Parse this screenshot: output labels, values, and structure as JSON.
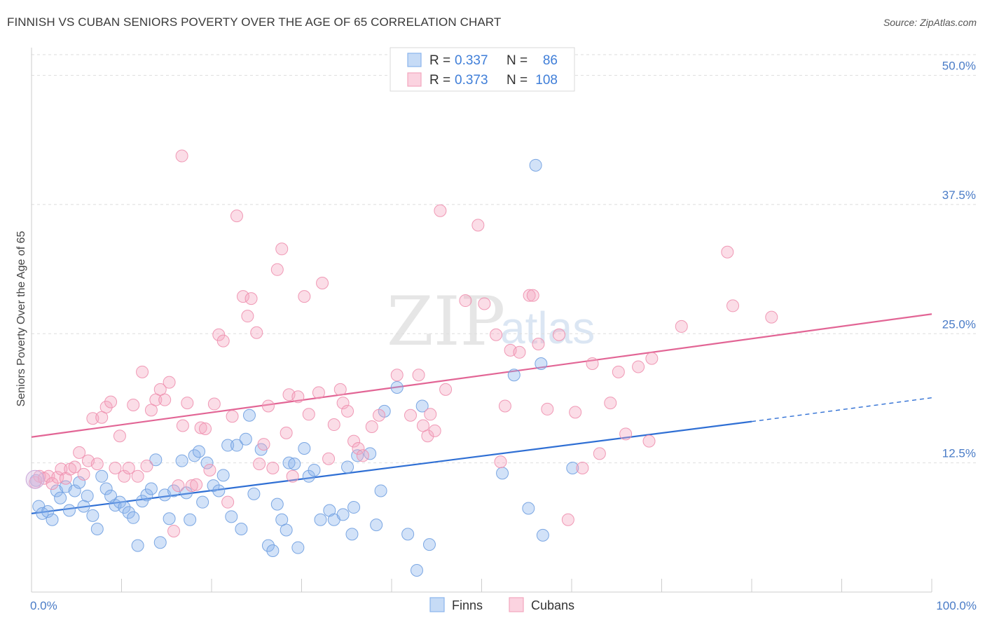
{
  "header": {
    "title": "FINNISH VS CUBAN SENIORS POVERTY OVER THE AGE OF 65 CORRELATION CHART",
    "source": "Source: ZipAtlas.com"
  },
  "watermark": {
    "zip": "ZIP",
    "atlas": "atlas"
  },
  "legend_top": {
    "rows": [
      {
        "r_label": "R =",
        "r_value": "0.337",
        "n_label": "N =",
        "n_value": "86",
        "color": "#8ab4ec"
      },
      {
        "r_label": "R =",
        "r_value": "0.373",
        "n_label": "N =",
        "n_value": "108",
        "color": "#f4a6bf"
      }
    ]
  },
  "legend_bottom": {
    "items": [
      {
        "label": "Finns",
        "color": "#8ab4ec"
      },
      {
        "label": "Cubans",
        "color": "#f4a6bf"
      }
    ]
  },
  "chart_data": {
    "type": "scatter",
    "title": "FINNISH VS CUBAN SENIORS POVERTY OVER THE AGE OF 65 CORRELATION CHART",
    "xlabel": "",
    "ylabel": "Seniors Poverty Over the Age of 65",
    "xlim": [
      0,
      100
    ],
    "ylim": [
      0,
      52
    ],
    "x_tick_labels": [
      "0.0%",
      "100.0%"
    ],
    "y_ticks": [
      12.5,
      25.0,
      37.5,
      50.0
    ],
    "y_tick_labels": [
      "12.5%",
      "25.0%",
      "37.5%",
      "50.0%"
    ],
    "grid": true,
    "legend_position": "top-center",
    "series": [
      {
        "name": "Finns",
        "color": "#8ab4ec",
        "stroke": "#6f9fe0",
        "trend": {
          "x0": 0,
          "y0": 7.6,
          "x1": 80,
          "y1": 16.5,
          "dash_to_x": 100,
          "dash_to_y": 18.8,
          "color": "#2f6fd4"
        },
        "points": [
          [
            0.5,
            10.8
          ],
          [
            0.8,
            8.3
          ],
          [
            1.2,
            7.6
          ],
          [
            1.8,
            7.8
          ],
          [
            2.3,
            7.0
          ],
          [
            2.8,
            9.8
          ],
          [
            3.2,
            9.1
          ],
          [
            3.8,
            10.2
          ],
          [
            4.2,
            7.9
          ],
          [
            4.8,
            9.8
          ],
          [
            5.3,
            10.6
          ],
          [
            5.8,
            8.3
          ],
          [
            6.2,
            9.3
          ],
          [
            6.8,
            7.4
          ],
          [
            7.3,
            6.1
          ],
          [
            7.8,
            11.2
          ],
          [
            8.3,
            10.0
          ],
          [
            8.8,
            9.3
          ],
          [
            9.3,
            8.4
          ],
          [
            9.8,
            8.7
          ],
          [
            10.3,
            8.2
          ],
          [
            10.8,
            7.7
          ],
          [
            11.3,
            7.2
          ],
          [
            11.8,
            4.5
          ],
          [
            12.3,
            8.8
          ],
          [
            12.8,
            9.4
          ],
          [
            13.3,
            10.0
          ],
          [
            13.8,
            12.8
          ],
          [
            14.3,
            4.8
          ],
          [
            14.8,
            9.4
          ],
          [
            15.3,
            7.1
          ],
          [
            15.8,
            9.8
          ],
          [
            16.7,
            12.7
          ],
          [
            17.2,
            9.6
          ],
          [
            17.6,
            7.0
          ],
          [
            18.1,
            13.2
          ],
          [
            18.6,
            13.6
          ],
          [
            19.0,
            8.7
          ],
          [
            19.5,
            12.5
          ],
          [
            20.2,
            10.3
          ],
          [
            20.8,
            9.8
          ],
          [
            21.3,
            11.3
          ],
          [
            21.8,
            14.2
          ],
          [
            22.2,
            7.3
          ],
          [
            22.8,
            14.2
          ],
          [
            23.3,
            6.1
          ],
          [
            23.8,
            14.8
          ],
          [
            24.2,
            17.1
          ],
          [
            24.7,
            9.5
          ],
          [
            25.5,
            13.8
          ],
          [
            26.3,
            4.5
          ],
          [
            26.8,
            4.0
          ],
          [
            27.3,
            8.5
          ],
          [
            27.8,
            7.0
          ],
          [
            28.3,
            6.0
          ],
          [
            28.6,
            12.5
          ],
          [
            29.2,
            12.4
          ],
          [
            29.6,
            4.3
          ],
          [
            30.3,
            13.9
          ],
          [
            30.8,
            11.2
          ],
          [
            31.4,
            11.8
          ],
          [
            32.1,
            7.0
          ],
          [
            33.1,
            7.9
          ],
          [
            33.6,
            7.0
          ],
          [
            34.6,
            7.5
          ],
          [
            35.1,
            12.1
          ],
          [
            35.6,
            5.6
          ],
          [
            35.8,
            8.2
          ],
          [
            36.2,
            13.2
          ],
          [
            37.6,
            13.4
          ],
          [
            38.3,
            6.5
          ],
          [
            38.8,
            9.8
          ],
          [
            39.2,
            17.5
          ],
          [
            40.6,
            19.8
          ],
          [
            41.8,
            5.6
          ],
          [
            42.8,
            2.1
          ],
          [
            43.4,
            18.0
          ],
          [
            44.2,
            4.6
          ],
          [
            52.3,
            11.5
          ],
          [
            53.6,
            21.0
          ],
          [
            55.2,
            8.1
          ],
          [
            56.0,
            41.3
          ],
          [
            56.6,
            22.1
          ],
          [
            56.8,
            5.5
          ],
          [
            60.1,
            12.0
          ]
        ]
      },
      {
        "name": "Cubans",
        "color": "#f4a6bf",
        "stroke": "#ee8fae",
        "trend": {
          "x0": 0,
          "y0": 15.0,
          "x1": 100,
          "y1": 26.9,
          "color": "#e26595"
        },
        "points": [
          [
            0.4,
            10.6
          ],
          [
            0.9,
            11.2
          ],
          [
            1.4,
            11.0
          ],
          [
            1.9,
            11.2
          ],
          [
            2.3,
            10.5
          ],
          [
            2.9,
            11.1
          ],
          [
            3.3,
            11.9
          ],
          [
            3.8,
            11.0
          ],
          [
            4.3,
            11.9
          ],
          [
            4.8,
            12.1
          ],
          [
            5.3,
            13.5
          ],
          [
            5.8,
            11.4
          ],
          [
            6.3,
            12.7
          ],
          [
            6.8,
            16.8
          ],
          [
            7.3,
            12.4
          ],
          [
            7.8,
            16.9
          ],
          [
            8.3,
            17.9
          ],
          [
            8.8,
            18.4
          ],
          [
            9.3,
            12.0
          ],
          [
            9.8,
            15.1
          ],
          [
            10.3,
            11.2
          ],
          [
            10.8,
            12.0
          ],
          [
            11.3,
            18.1
          ],
          [
            11.8,
            11.2
          ],
          [
            12.3,
            21.3
          ],
          [
            12.8,
            12.2
          ],
          [
            13.3,
            17.6
          ],
          [
            13.8,
            18.6
          ],
          [
            14.3,
            19.6
          ],
          [
            14.8,
            18.6
          ],
          [
            15.3,
            20.3
          ],
          [
            15.8,
            5.9
          ],
          [
            16.3,
            10.3
          ],
          [
            16.8,
            16.1
          ],
          [
            16.7,
            42.2
          ],
          [
            17.3,
            18.3
          ],
          [
            17.8,
            10.3
          ],
          [
            18.3,
            10.4
          ],
          [
            18.8,
            15.9
          ],
          [
            19.3,
            15.8
          ],
          [
            19.8,
            11.8
          ],
          [
            20.3,
            18.2
          ],
          [
            20.8,
            24.9
          ],
          [
            21.3,
            24.3
          ],
          [
            21.8,
            8.7
          ],
          [
            22.3,
            17.0
          ],
          [
            22.8,
            36.4
          ],
          [
            23.5,
            28.6
          ],
          [
            24.0,
            26.7
          ],
          [
            24.4,
            28.4
          ],
          [
            25.0,
            25.1
          ],
          [
            25.3,
            12.4
          ],
          [
            25.8,
            14.3
          ],
          [
            26.3,
            18.0
          ],
          [
            26.8,
            12.0
          ],
          [
            27.3,
            31.2
          ],
          [
            27.8,
            33.2
          ],
          [
            28.3,
            15.4
          ],
          [
            28.6,
            19.1
          ],
          [
            29.0,
            11.2
          ],
          [
            29.6,
            18.9
          ],
          [
            30.3,
            28.6
          ],
          [
            30.8,
            17.2
          ],
          [
            31.9,
            19.3
          ],
          [
            32.3,
            29.9
          ],
          [
            33.0,
            12.9
          ],
          [
            33.6,
            16.2
          ],
          [
            34.3,
            19.6
          ],
          [
            34.6,
            18.3
          ],
          [
            35.1,
            17.5
          ],
          [
            35.8,
            14.6
          ],
          [
            36.3,
            13.9
          ],
          [
            36.8,
            13.2
          ],
          [
            37.8,
            16.0
          ],
          [
            38.6,
            17.1
          ],
          [
            40.6,
            21.0
          ],
          [
            42.1,
            17.1
          ],
          [
            43.0,
            21.0
          ],
          [
            43.5,
            16.1
          ],
          [
            44.0,
            15.1
          ],
          [
            44.3,
            17.2
          ],
          [
            44.8,
            15.6
          ],
          [
            45.4,
            36.9
          ],
          [
            46.0,
            19.6
          ],
          [
            48.2,
            28.2
          ],
          [
            49.6,
            35.5
          ],
          [
            50.3,
            27.9
          ],
          [
            51.6,
            24.9
          ],
          [
            52.1,
            12.6
          ],
          [
            52.6,
            18.0
          ],
          [
            53.2,
            23.4
          ],
          [
            54.2,
            23.2
          ],
          [
            55.3,
            28.7
          ],
          [
            55.7,
            28.7
          ],
          [
            56.3,
            24.0
          ],
          [
            57.3,
            17.7
          ],
          [
            58.6,
            24.9
          ],
          [
            59.6,
            7.0
          ],
          [
            60.4,
            17.4
          ],
          [
            61.2,
            12.0
          ],
          [
            62.3,
            22.1
          ],
          [
            63.1,
            13.4
          ],
          [
            64.3,
            18.3
          ],
          [
            65.2,
            21.3
          ],
          [
            66.0,
            15.3
          ],
          [
            67.4,
            21.8
          ],
          [
            68.6,
            14.6
          ],
          [
            68.9,
            22.6
          ],
          [
            72.2,
            25.7
          ],
          [
            77.3,
            32.9
          ],
          [
            77.9,
            27.7
          ],
          [
            82.2,
            26.6
          ]
        ]
      }
    ]
  }
}
